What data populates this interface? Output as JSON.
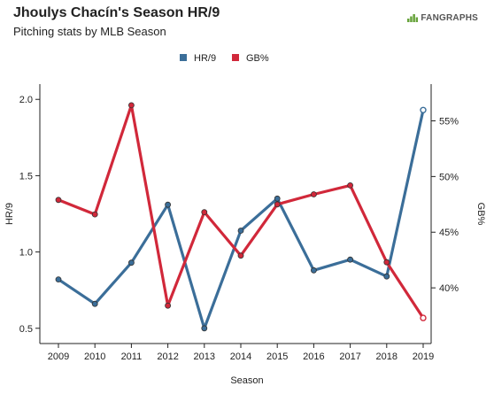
{
  "brand": {
    "name": "FANGRAPHS"
  },
  "chart_data": {
    "type": "line",
    "title": "Jhoulys Chacín's Season HR/9",
    "subtitle": "Pitching stats by MLB Season",
    "xlabel": "Season",
    "ylabel_left": "HR/9",
    "ylabel_right": "GB%",
    "categories": [
      "2009",
      "2010",
      "2011",
      "2012",
      "2013",
      "2014",
      "2015",
      "2016",
      "2017",
      "2018",
      "2019"
    ],
    "y_left_range": [
      0.4,
      2.1
    ],
    "y_left_ticks": [
      "0.5",
      "1.0",
      "1.5",
      "2.0"
    ],
    "y_right_range": [
      35.0,
      58.3
    ],
    "y_right_ticks": [
      "40%",
      "45%",
      "50%",
      "55%"
    ],
    "legend_position": "top-center",
    "grid": false,
    "series": [
      {
        "name": "HR/9",
        "axis": "left",
        "color": "#3b6e99",
        "values": [
          0.82,
          0.66,
          0.93,
          1.31,
          0.5,
          1.14,
          1.35,
          0.88,
          0.95,
          0.84,
          1.93
        ]
      },
      {
        "name": "GB%",
        "axis": "right",
        "color": "#d1283a",
        "values": [
          47.9,
          46.6,
          56.4,
          38.4,
          46.8,
          42.9,
          47.5,
          48.4,
          49.2,
          42.3,
          37.3
        ]
      }
    ]
  }
}
